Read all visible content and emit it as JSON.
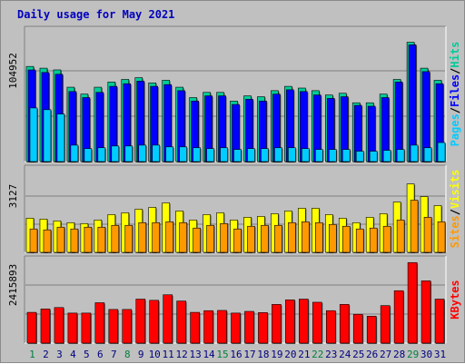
{
  "title": "Daily usage for May 2021",
  "colors": {
    "background": "#c0c0c0",
    "hits": "#00cc99",
    "files": "#0000ff",
    "pages": "#00ccff",
    "visits": "#ffff00",
    "sites": "#ff9900",
    "kbytes": "#ff0000",
    "weekday_label": "#008040",
    "weekday_label_normal": "#000080"
  },
  "chart_data": [
    {
      "type": "bar",
      "panel": "hits-files-pages",
      "y_tick_label": "104952",
      "y_tick_value": 104952,
      "ylim": [
        0,
        140000
      ],
      "x": [
        1,
        2,
        3,
        4,
        5,
        6,
        7,
        8,
        9,
        10,
        11,
        12,
        13,
        14,
        15,
        16,
        17,
        18,
        19,
        20,
        21,
        22,
        23,
        24,
        25,
        26,
        27,
        28,
        29,
        30,
        31
      ],
      "weekend_days": [
        1,
        8,
        15,
        22,
        29
      ],
      "series": [
        {
          "name": "Hits",
          "values": [
            110000,
            108000,
            106000,
            86000,
            78000,
            86000,
            92000,
            95000,
            97000,
            91000,
            94000,
            86000,
            74000,
            80000,
            80000,
            70000,
            76000,
            75000,
            82000,
            87000,
            85000,
            82000,
            77000,
            79000,
            68000,
            68000,
            78000,
            95000,
            138000,
            108000,
            94000
          ]
        },
        {
          "name": "Files",
          "values": [
            106000,
            103000,
            101000,
            81000,
            74000,
            80000,
            87000,
            90000,
            93000,
            87000,
            89000,
            82000,
            70000,
            76000,
            76000,
            66000,
            72000,
            70000,
            78000,
            83000,
            81000,
            77000,
            73000,
            75000,
            65000,
            64000,
            74000,
            92000,
            135000,
            104000,
            90000
          ]
        },
        {
          "name": "Pages",
          "values": [
            62000,
            60000,
            55000,
            19000,
            15000,
            16000,
            18000,
            18000,
            19000,
            19000,
            17000,
            17000,
            16000,
            15000,
            16000,
            14000,
            15000,
            15000,
            16000,
            16000,
            15000,
            14000,
            14000,
            14000,
            12000,
            12000,
            13000,
            14000,
            19000,
            16000,
            22000
          ]
        }
      ],
      "side_labels": [
        "Pages",
        "Files",
        "Hits"
      ]
    },
    {
      "type": "bar",
      "panel": "visits-sites",
      "y_tick_label": "3127",
      "y_tick_value": 3127,
      "ylim": [
        0,
        4100
      ],
      "x": [
        1,
        2,
        3,
        4,
        5,
        6,
        7,
        8,
        9,
        10,
        11,
        12,
        13,
        14,
        15,
        16,
        17,
        18,
        19,
        20,
        21,
        22,
        23,
        24,
        25,
        26,
        27,
        28,
        29,
        30,
        31
      ],
      "series": [
        {
          "name": "Visits",
          "values": [
            1900,
            1850,
            1750,
            1650,
            1600,
            1800,
            2100,
            2200,
            2400,
            2500,
            2750,
            2300,
            1800,
            2100,
            2200,
            1800,
            1950,
            2000,
            2150,
            2300,
            2450,
            2450,
            2100,
            1900,
            1650,
            1950,
            2150,
            2800,
            3800,
            3100,
            2600
          ]
        },
        {
          "name": "Sites",
          "values": [
            1300,
            1250,
            1400,
            1300,
            1400,
            1400,
            1500,
            1500,
            1650,
            1650,
            1700,
            1650,
            1350,
            1500,
            1600,
            1300,
            1450,
            1500,
            1500,
            1650,
            1700,
            1650,
            1550,
            1450,
            1300,
            1350,
            1450,
            1800,
            2900,
            1950,
            1700
          ]
        }
      ],
      "side_labels": [
        "Sites",
        "Visits"
      ]
    },
    {
      "type": "bar",
      "panel": "kbytes",
      "y_tick_label": "2415893",
      "y_tick_value": 2415893,
      "ylim": [
        0,
        3250000
      ],
      "x": [
        1,
        2,
        3,
        4,
        5,
        6,
        7,
        8,
        9,
        10,
        11,
        12,
        13,
        14,
        15,
        16,
        17,
        18,
        19,
        20,
        21,
        22,
        23,
        24,
        25,
        26,
        27,
        28,
        29,
        30,
        31
      ],
      "series": [
        {
          "name": "KBytes",
          "values": [
            1280000,
            1420000,
            1480000,
            1250000,
            1250000,
            1680000,
            1400000,
            1400000,
            1830000,
            1780000,
            2010000,
            1750000,
            1280000,
            1350000,
            1360000,
            1250000,
            1320000,
            1270000,
            1610000,
            1800000,
            1830000,
            1700000,
            1350000,
            1610000,
            1200000,
            1120000,
            1560000,
            2180000,
            3350000,
            2590000,
            1830000
          ]
        }
      ],
      "side_labels": [
        "KBytes"
      ]
    }
  ],
  "day_labels": [
    "1",
    "2",
    "3",
    "4",
    "5",
    "6",
    "7",
    "8",
    "9",
    "10",
    "11",
    "12",
    "13",
    "14",
    "15",
    "16",
    "17",
    "18",
    "19",
    "20",
    "21",
    "22",
    "23",
    "24",
    "25",
    "26",
    "27",
    "28",
    "29",
    "30",
    "31"
  ]
}
